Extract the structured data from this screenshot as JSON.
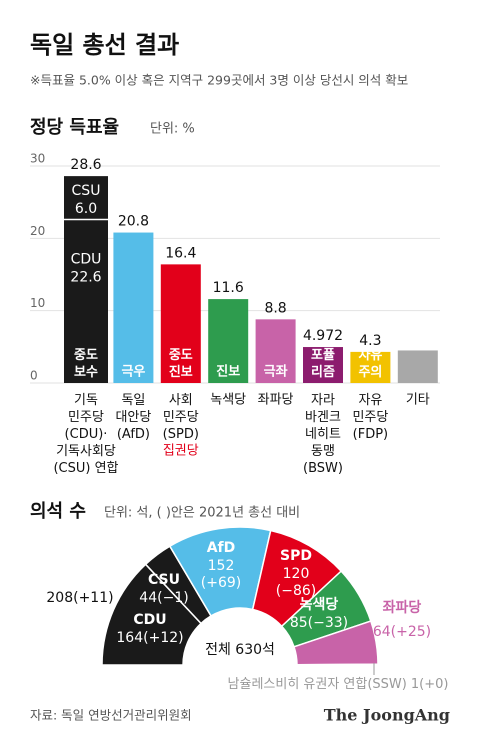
{
  "header": {
    "title": "독일 총선 결과",
    "subtitle": "※득표율 5.0% 이상 혹은 지역구 299곳에서 3명 이상 당선시 의석 확보"
  },
  "chart_data": [
    {
      "type": "bar",
      "title": "정당 득표율",
      "unit": "단위: %",
      "categories": [
        "기독\n민주당\n(CDU)·\n기독사회당\n(CSU) 연합",
        "독일\n대안당\n(AfD)",
        "사회\n민주당\n(SPD)",
        "녹색당",
        "좌파당",
        "자라\n바겐크\n네히트\n동맹\n(BSW)",
        "자유\n민주당\n(FDP)",
        "기타"
      ],
      "category_notes": [
        null,
        null,
        "집권당",
        null,
        null,
        null,
        null,
        null
      ],
      "values": [
        28.6,
        20.8,
        16.4,
        11.6,
        8.8,
        4.972,
        4.3,
        4.5
      ],
      "value_labels": [
        "28.6",
        "20.8",
        "16.4",
        "11.6",
        "8.8",
        "4.972",
        "4.3",
        null
      ],
      "colors": [
        "#1a1a1a",
        "#55bde8",
        "#e2001a",
        "#2e9c4e",
        "#c863a8",
        "#8c1c6e",
        "#f2c200",
        "#a8a8a8"
      ],
      "tags": [
        "중도\n보수",
        "극우",
        "중도\n진보",
        "진보",
        "극좌",
        "포퓰\n리즘",
        "자유\n주의",
        null
      ],
      "stack": {
        "index": 0,
        "segments": [
          {
            "name": "CDU",
            "value": 22.6,
            "color": "#1a1a1a"
          },
          {
            "name": "CSU",
            "value": 6.0,
            "value_label": "6.0",
            "color": "#1a1a1a"
          }
        ]
      },
      "ylim": [
        0,
        30
      ],
      "yticks": [
        0,
        10,
        20,
        30
      ],
      "grid": true
    },
    {
      "type": "half-donut",
      "title": "의석 수",
      "unit": "단위: 석, ( )안은 2021년 총선 대비",
      "categories": [
        "CDU",
        "CSU",
        "AfD",
        "SPD",
        "녹색당",
        "좌파당",
        "남슐레스비히 유권자 연합(SSW)"
      ],
      "values": [
        164,
        44,
        152,
        120,
        85,
        64,
        1
      ],
      "changes": [
        "(+12)",
        "(−1)",
        "(+69)",
        "(−86)",
        "(−33)",
        "(+25)",
        "(+0)"
      ],
      "colors": [
        "#1a1a1a",
        "#1a1a1a",
        "#55bde8",
        "#e2001a",
        "#2e9c4e",
        "#c863a8",
        "#8aa0c8"
      ],
      "union_label": "208(+11)",
      "total_label": "전체 630석"
    }
  ],
  "footer": {
    "source": "자료: 독일 연방선거관리위원회",
    "logo": "The JoongAng"
  }
}
